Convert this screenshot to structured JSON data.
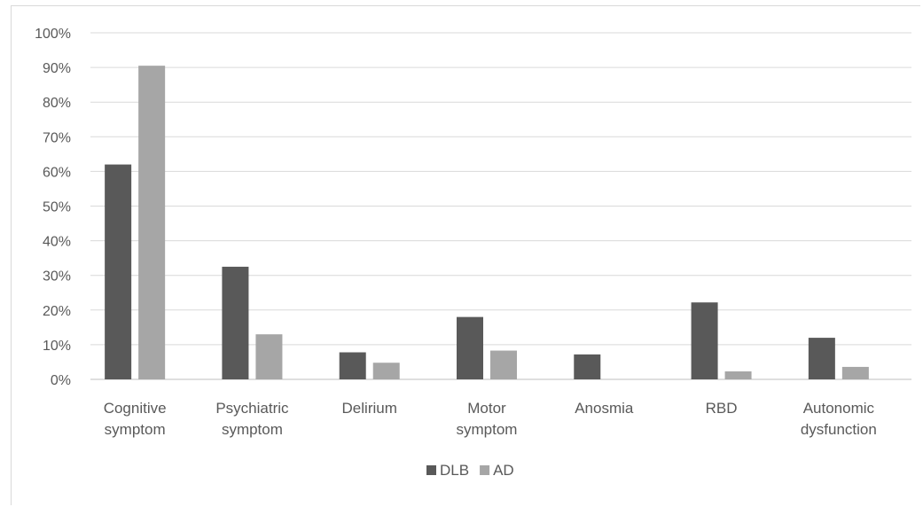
{
  "chart_data": {
    "type": "bar",
    "categories": [
      [
        "Cognitive",
        "symptom"
      ],
      [
        "Psychiatric",
        "symptom"
      ],
      [
        "Delirium"
      ],
      [
        "Motor",
        "symptom"
      ],
      [
        "Anosmia"
      ],
      [
        "RBD"
      ],
      [
        "Autonomic",
        "dysfunction"
      ]
    ],
    "series": [
      {
        "name": "DLB",
        "color": "#595959",
        "values": [
          62,
          32.5,
          7.8,
          18,
          7.2,
          22.2,
          12
        ]
      },
      {
        "name": "AD",
        "color": "#a6a6a6",
        "values": [
          90.5,
          13,
          4.8,
          8.3,
          0,
          2.3,
          3.6
        ]
      }
    ],
    "ylim": [
      0,
      100
    ],
    "yticks": [
      "0%",
      "10%",
      "20%",
      "30%",
      "40%",
      "50%",
      "60%",
      "70%",
      "80%",
      "90%",
      "100%"
    ],
    "ytick_values": [
      0,
      10,
      20,
      30,
      40,
      50,
      60,
      70,
      80,
      90,
      100
    ],
    "grid": true,
    "legend_position": "bottom",
    "title": "",
    "xlabel": "",
    "ylabel": ""
  }
}
